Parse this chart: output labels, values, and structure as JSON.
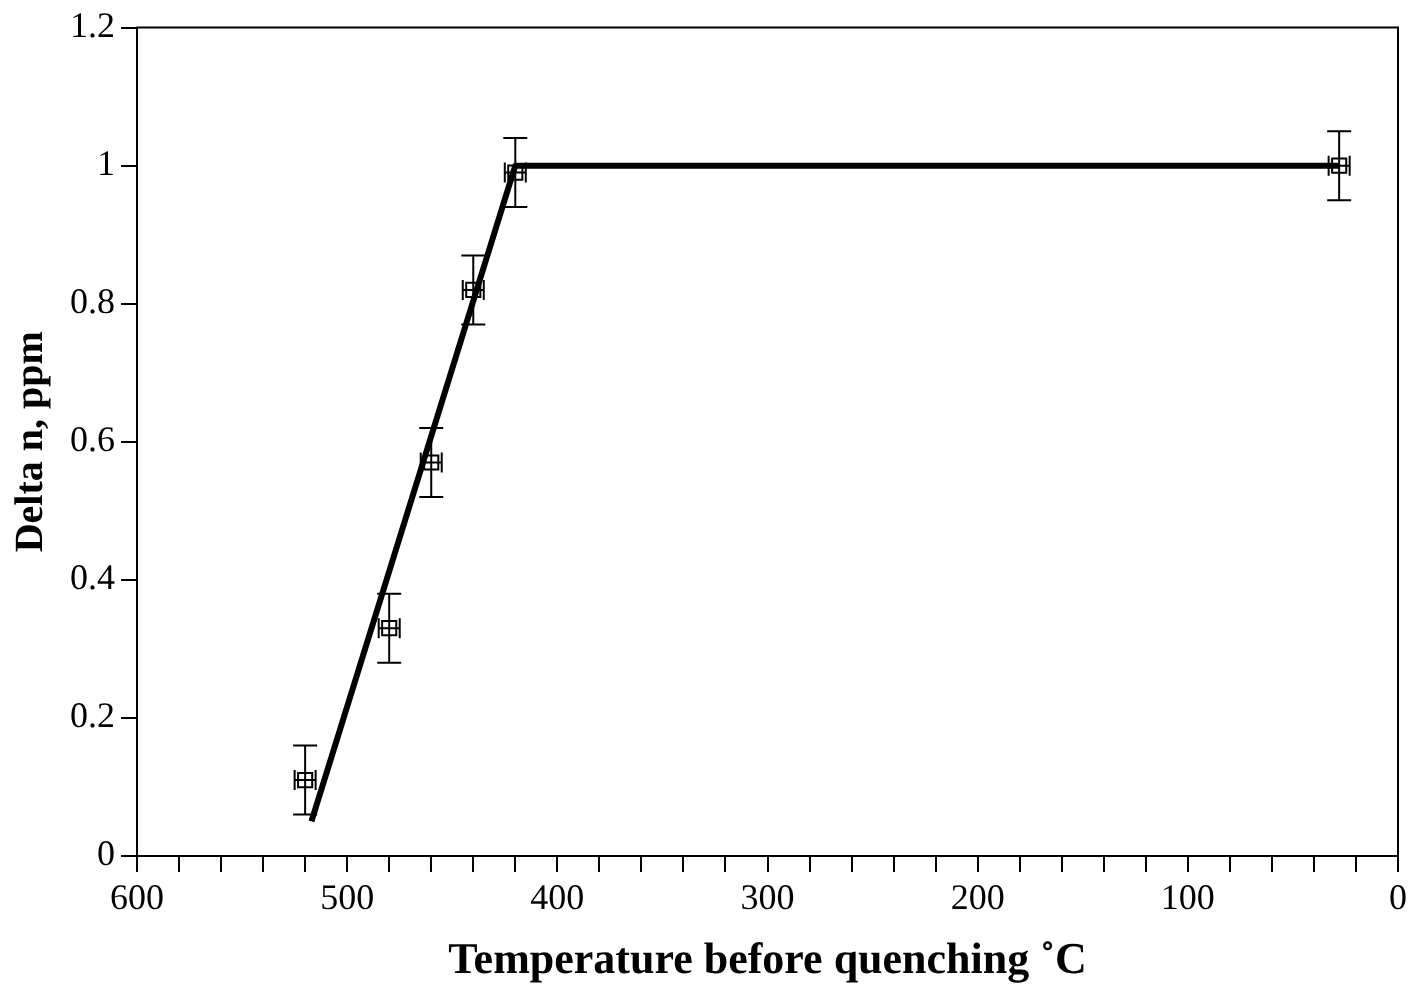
{
  "chart_data": {
    "type": "scatter",
    "xlabel": "Temperature before quenching ˚C",
    "ylabel": "Delta n, ppm",
    "xlim": [
      600,
      0
    ],
    "ylim": [
      0,
      1.2
    ],
    "xticks": [
      600,
      {
        "value": 580,
        "label": null
      },
      {
        "value": 560,
        "label": null
      },
      {
        "value": 540,
        "label": null
      },
      {
        "value": 520,
        "label": null
      },
      500,
      {
        "value": 480,
        "label": null
      },
      {
        "value": 460,
        "label": null
      },
      {
        "value": 440,
        "label": null
      },
      {
        "value": 420,
        "label": null
      },
      400,
      {
        "value": 380,
        "label": null
      },
      {
        "value": 360,
        "label": null
      },
      {
        "value": 340,
        "label": null
      },
      {
        "value": 320,
        "label": null
      },
      300,
      {
        "value": 280,
        "label": null
      },
      {
        "value": 260,
        "label": null
      },
      {
        "value": 240,
        "label": null
      },
      {
        "value": 220,
        "label": null
      },
      200,
      {
        "value": 180,
        "label": null
      },
      {
        "value": 160,
        "label": null
      },
      {
        "value": 140,
        "label": null
      },
      {
        "value": 120,
        "label": null
      },
      100,
      {
        "value": 80,
        "label": null
      },
      {
        "value": 60,
        "label": null
      },
      {
        "value": 40,
        "label": null
      },
      {
        "value": 20,
        "label": null
      },
      0
    ],
    "yticks": [
      0,
      0.2,
      0.4,
      0.6,
      0.8,
      1,
      1.2
    ],
    "grid": false,
    "legend": false,
    "series": [
      {
        "marker": "square",
        "color": "#000000",
        "x": [
          520,
          480,
          460,
          440,
          420,
          28
        ],
        "values": [
          0.11,
          0.33,
          0.57,
          0.82,
          0.99,
          1.0
        ],
        "errors": [
          0.05,
          0.05,
          0.05,
          0.05,
          0.05,
          0.05
        ],
        "xerrors": [
          5,
          5,
          5,
          5,
          5,
          5
        ]
      },
      {
        "type": "line",
        "marker": "none",
        "color": "#000000",
        "x": [
          517,
          420,
          28
        ],
        "values": [
          0.05,
          1,
          1
        ]
      }
    ]
  }
}
